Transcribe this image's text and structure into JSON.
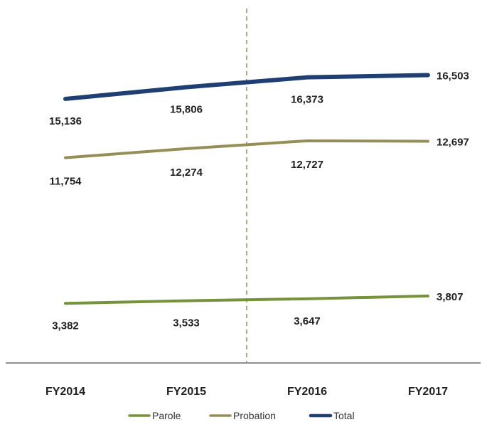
{
  "chart_data": {
    "type": "line",
    "categories": [
      "FY2014",
      "FY2015",
      "FY2016",
      "FY2017"
    ],
    "series": [
      {
        "name": "Parole",
        "values": [
          3382,
          3533,
          3647,
          3807
        ],
        "color": "#76923c"
      },
      {
        "name": "Probation",
        "values": [
          11754,
          12274,
          12727,
          12697
        ],
        "color": "#958f57"
      },
      {
        "name": "Total",
        "values": [
          15136,
          15806,
          16373,
          16503
        ],
        "color": "#1f3f73"
      }
    ],
    "legend": [
      "Parole",
      "Probation",
      "Total"
    ],
    "legend_position": "bottom",
    "xlabel": "",
    "ylabel": "",
    "ylim": [
      0,
      20000
    ],
    "grid": false,
    "annotations": {
      "vertical_dashed_line_between": [
        "FY2015",
        "FY2016"
      ],
      "vertical_line_color": "#8c9d6a"
    },
    "labels": {
      "FY2014": [
        "3,382",
        "11,754",
        "15,136"
      ],
      "FY2015": [
        "3,533",
        "12,274",
        "15,806"
      ],
      "FY2016": [
        "3,647",
        "12,727",
        "16,373"
      ],
      "FY2017": [
        "3,807",
        "12,697",
        "16,503"
      ]
    }
  }
}
